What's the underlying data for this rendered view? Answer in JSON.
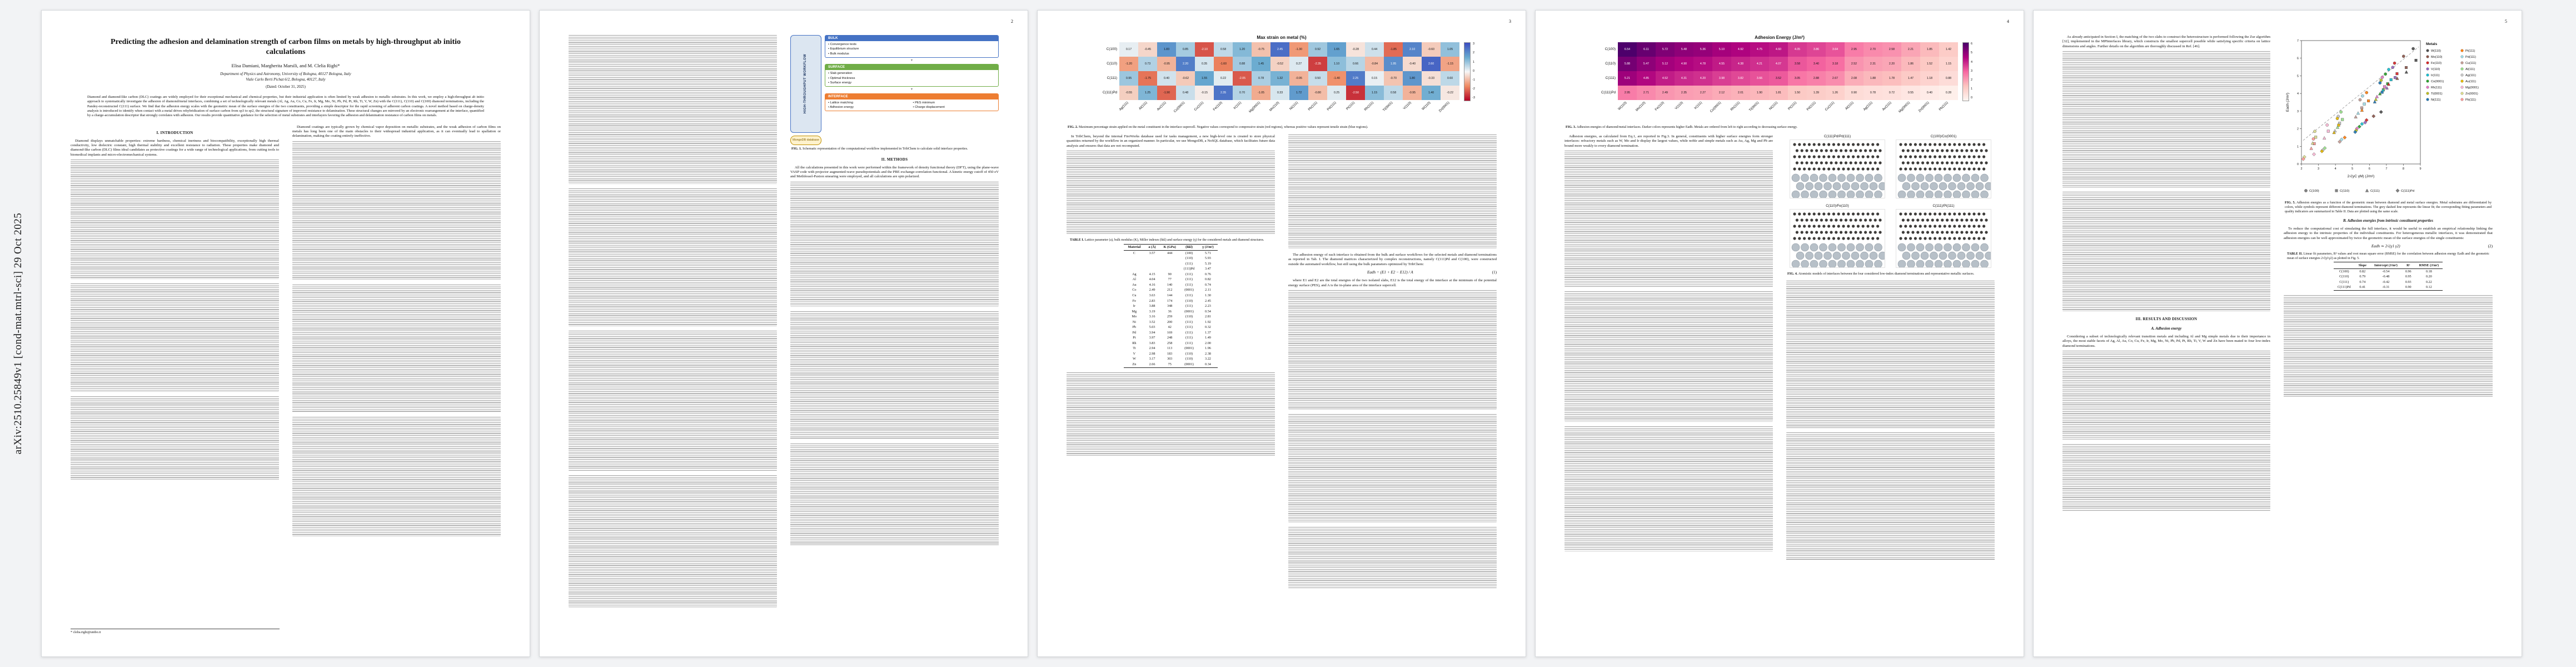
{
  "arxiv_label": "arXiv:2510.25849v1  [cond-mat.mtrl-sci]  29 Oct 2025",
  "page_numbers": {
    "p2": "2",
    "p3": "3",
    "p4": "4",
    "p5": "5"
  },
  "paper": {
    "title": "Predicting the adhesion and delamination strength of carbon films on metals by high-throughput ab initio calculations",
    "authors": "Elisa Damiani, Margherita Marsili, and M. Clelia Righi*",
    "affiliation1": "Department of Physics and Astronomy, University of Bologna, 40127 Bologna, Italy",
    "affiliation2": "Viale Carlo Berti Pichat 6/2, Bologna, 40127, Italy",
    "dated": "(Dated: October 31, 2025)",
    "abstract": "Diamond and diamond-like carbon (DLC) coatings are widely employed for their exceptional mechanical and chemical properties, but their industrial application is often limited by weak adhesion to metallic substrates. In this work, we employ a high-throughput ab initio approach to systematically investigate the adhesion of diamond/metal interfaces, combining a set of technologically relevant metals (Al, Ag, Au, Co, Cu, Fe, Ir, Mg, Mo, Ni, Pb, Pd, Pt, Rh, Ti, V, W, Zn) with the C(111), C(110) and C(100) diamond terminations, including the Pandey-reconstructed C(111) surface. We find that the adhesion energy scales with the geometric mean of the surface energies of the two constituents, providing a simple descriptor for the rapid screening of adherent carbon coatings. A novel method based on charge-density analysis is introduced to identify when contact with a metal drives rehybridization of surface carbon from sp3 to sp2, the structural signature of improved resistance to delamination. These structural changes are mirrored by an electronic rearrangement at the interface, quantified by a charge-accumulation descriptor that strongly correlates with adhesion. Our results provide quantitative guidance for the selection of metal substrates and interlayers favoring the adhesion and delamination resistance of carbon films on metals.",
    "footnote": "* clelia.righi@unibo.it"
  },
  "headings": {
    "intro": "I. INTRODUCTION",
    "methods": "II. METHODS",
    "results": "III. RESULTS AND DISCUSSION",
    "sub_a": "A. Adhesion energy",
    "sub_b": "B. Adhesion energies from intrinsic constituent properties"
  },
  "paragraphs": {
    "intro_1": "Diamond displays unmatchable properties: extreme hardness, chemical inertness and biocompatibility, exceptionally high thermal conductivity, low dielectric constant, high thermal stability and excellent resistance to radiation. These properties make diamond and diamond-like carbon (DLC) films ideal candidates as protective coatings for a wide range of technological applications, from cutting tools to biomedical implants and micro-electromechanical systems.",
    "p1_right": "Diamond coatings are typically grown by chemical vapor deposition on metallic substrates, and the weak adhesion of carbon films on metals has long been one of the main obstacles to their widespread industrial application, as it can eventually lead to spallation or delamination, making the coating entirely ineffective.",
    "methods_1": "All the calculations presented in this work were performed within the framework of density functional theory (DFT), using the plane-wave VASP code with projector augmented-wave pseudopotentials and the PBE exchange-correlation functional. A kinetic energy cutoff of 450 eV and Methfessel-Paxton smearing were employed, and all calculations are spin polarized.",
    "p3_left_trib": "In TribChem, beyond the internal FireWorks database used for tasks management, a new high-level one is created to store physical quantities returned by the workflow in an organized manner. In particular, we use MongoDB, a NoSQL database, which facilitates future data analysis and ensures that data are not recomputed.",
    "p3_right_pre": "The adhesion energy of each interface is obtained from the bulk and surface workflows for the selected metals and diamond terminations as reported in Tab. I. The diamond matrices characterized by complex reconstructions, namely C(111)Pd and C(100), were constructed outside the automated workflow, but still using the bulk parameters optimized by TribChem:",
    "p3_right_post": "where E1 and E2 are the total energies of the two isolated slabs, E12 is the total energy of the interface at the minimum of the potential energy surface (PES), and A is the in-plane area of the interface supercell.",
    "p4_left_1": "Adhesion energies, as calculated from Eq.1, are reported in Fig.3. In general, constituents with higher surface energies form stronger interfaces: refractory metals such as W, Mo and Ir display the largest values, while noble and simple metals such as Au, Ag, Mg and Pb are bound more weakly to every diamond termination.",
    "p5_left_1": "As already anticipated in Section I, the matching of the two slabs to construct the heterostructure is performed following the Zur algorithm [32], implemented in the MPInterfaces library, which constructs the smallest supercell possible while satisfying specific criteria on lattice dimensions and angles. Further details on the algorithm are thoroughly discussed in Ref. [46].",
    "p5_a_1": "Considering a subset of technologically relevant transition metals and including Al and Mg simple metals due to their importance in alloys, the most stable facets of Ag, Al, Au, Co, Cu, Fe, Ir, Mg, Mo, Ni, Pb, Pd, Pt, Rh, Ti, V, W and Zn have been mated to four low-index diamond terminations.",
    "p5_b_1": "To reduce the computational cost of simulating the full interface, it would be useful to establish an empirical relationship linking the adhesion energy to the intrinsic properties of the individual constituents. For heterogeneous metallic interfaces, it was demonstrated that adhesion energies can be well approximated by twice the geometric mean of the surface energies of the single constituents:"
  },
  "equations": {
    "eq1": "Eadh = (E1 + E2 − E12) / A",
    "eq1_num": "(1)",
    "eq2": "Eadh ≃ 2√(γ1 γ2)",
    "eq2_num": "(2)"
  },
  "figures": {
    "fig1": {
      "label": "FIG. 1.",
      "caption": "Schematic representation of the computational workflow implemented in TribChem to calculate solid interface properties."
    },
    "fig2": {
      "label": "FIG. 2.",
      "caption": "Maximum percentage strain applied on the metal constituent in the interface supercell. Negative values correspond to compressive strain (red regions), whereas positive values represent tensile strain (blue regions)."
    },
    "fig3": {
      "label": "FIG. 3.",
      "caption": "Adhesion energies of diamond/metal interfaces. Darker colors represents higher Eadh. Metals are ordered from left to right according to decreasing surface energy."
    },
    "fig4": {
      "label": "FIG. 4.",
      "caption": "Atomistic models of interfaces between the four considered low-index diamond terminations and representative metallic surfaces.",
      "panels": [
        "C(111)Pd/Pd(111)",
        "C(100)/Co(0001)",
        "C(110)/Fe(110)",
        "C(111)/Pt(111)"
      ]
    },
    "fig5": {
      "label": "FIG. 5.",
      "caption": "Adhesion energies as a function of the geometric mean between diamond and metal surface energies. Metal substrates are differentiated by colors, while symbols represent different diamond terminations. The grey dashed line represents the linear fit; the corresponding fitting parameters and quality indicators are summarized in Table II. Data are plotted using the same scale."
    }
  },
  "fig1_diagram": {
    "side_label": "HIGH-THROUGHPUT WORKFLOW",
    "db_label": "MongoDB database",
    "boxes": [
      {
        "label": "BULK",
        "color": "#4472c4",
        "items": [
          "Convergence tests",
          "Equilibrium structure",
          "Bulk modulus"
        ]
      },
      {
        "label": "SURFACE",
        "color": "#70ad47",
        "items": [
          "Slab generation",
          "Optimal thickness",
          "Surface energy"
        ]
      },
      {
        "label": "INTERFACE",
        "color": "#ed7d31",
        "items": [
          "Lattice matching",
          "PES minimum",
          "Adhesion energy",
          "Charge displacement"
        ]
      }
    ]
  },
  "table1": {
    "label": "TABLE I.",
    "caption": "Lattice parameter (a), bulk modulus (K), Miller indexes (hkl) and surface energy (γ) for the considered metals and diamond structures.",
    "headers": [
      "Material",
      "a (Å)",
      "K (GPa)",
      "(hkl)",
      "γ (J/m²)"
    ],
    "rows": [
      [
        "C",
        "3.57",
        "444",
        "(100)",
        "5.71"
      ],
      [
        "",
        "",
        "",
        "(110)",
        "5.93"
      ],
      [
        "",
        "",
        "",
        "(111)",
        "5.19"
      ],
      [
        "",
        "",
        "",
        "(111)Pd",
        "3.47"
      ],
      [
        "Ag",
        "4.15",
        "90",
        "(111)",
        "0.76"
      ],
      [
        "Al",
        "4.04",
        "77",
        "(111)",
        "0.82"
      ],
      [
        "Au",
        "4.16",
        "140",
        "(111)",
        "0.74"
      ],
      [
        "Co",
        "2.49",
        "212",
        "(0001)",
        "2.11"
      ],
      [
        "Cu",
        "3.63",
        "144",
        "(111)",
        "1.30"
      ],
      [
        "Fe",
        "2.83",
        "174",
        "(110)",
        "2.45"
      ],
      [
        "Ir",
        "3.88",
        "348",
        "(111)",
        "2.23"
      ],
      [
        "Mg",
        "3.19",
        "36",
        "(0001)",
        "0.54"
      ],
      [
        "Mo",
        "3.16",
        "259",
        "(110)",
        "2.81"
      ],
      [
        "Ni",
        "3.52",
        "200",
        "(111)",
        "1.92"
      ],
      [
        "Pb",
        "5.03",
        "42",
        "(111)",
        "0.32"
      ],
      [
        "Pd",
        "3.94",
        "169",
        "(111)",
        "1.37"
      ],
      [
        "Pt",
        "3.97",
        "248",
        "(111)",
        "1.49"
      ],
      [
        "Rh",
        "3.83",
        "258",
        "(111)",
        "2.00"
      ],
      [
        "Ti",
        "2.94",
        "113",
        "(0001)",
        "1.96"
      ],
      [
        "V",
        "2.98",
        "183",
        "(110)",
        "2.38"
      ],
      [
        "W",
        "3.17",
        "303",
        "(110)",
        "3.22"
      ],
      [
        "Zn",
        "2.66",
        "75",
        "(0001)",
        "0.34"
      ]
    ]
  },
  "table2": {
    "label": "TABLE II.",
    "caption": "Linear fit parameters, R² values and root mean square error (RMSE) for the correlation between adhesion energy Eadh and the geometric mean of surface energies 2√(γ1γ2) as plotted in Fig. 5.",
    "headers": [
      "",
      "Slope",
      "Intercept (J/m²)",
      "R²",
      "RMSE (J/m²)"
    ],
    "rows": [
      [
        "C(100)",
        "0.82",
        "-0.54",
        "0.96",
        "0.18"
      ],
      [
        "C(110)",
        "0.79",
        "-0.48",
        "0.95",
        "0.20"
      ],
      [
        "C(111)",
        "0.74",
        "-0.42",
        "0.93",
        "0.22"
      ],
      [
        "C(111)Pd",
        "0.41",
        "-0.31",
        "0.90",
        "0.12"
      ]
    ]
  },
  "chart_data": {
    "fig2": {
      "type": "heatmap",
      "title": "Max strain on metal (%)",
      "palette": "diverging",
      "vmin": -3,
      "vmax": 3,
      "colorbar_ticks": [
        "3",
        "2",
        "1",
        "0",
        "-1",
        "-2",
        "-3"
      ],
      "rows": [
        "C(100)",
        "C(110)",
        "C(111)",
        "C(111)Pd"
      ],
      "cols": [
        "Ag(111)",
        "Al(111)",
        "Au(111)",
        "Co(0001)",
        "Cu(111)",
        "Fe(110)",
        "Ir(111)",
        "Mg(0001)",
        "Mo(110)",
        "Ni(111)",
        "Pb(111)",
        "Pd(111)",
        "Pt(111)",
        "Rh(111)",
        "Ti(0001)",
        "V(110)",
        "W(110)",
        "Zn(0001)"
      ],
      "values": [
        [
          0.17,
          -0.45,
          1.83,
          0.85,
          -2.1,
          0.58,
          1.2,
          -0.75,
          2.45,
          -1.3,
          0.92,
          1.65,
          -0.28,
          0.44,
          -1.85,
          2.1,
          -0.6,
          1.05
        ],
        [
          -1.2,
          0.73,
          -0.95,
          2.2,
          0.35,
          -1.6,
          0.88,
          1.45,
          -0.52,
          0.27,
          -2.35,
          1.1,
          0.66,
          -0.84,
          1.95,
          -0.4,
          2.6,
          -1.15
        ],
        [
          0.95,
          -1.75,
          0.4,
          -0.62,
          1.55,
          0.22,
          -2.05,
          0.78,
          1.32,
          -0.95,
          0.5,
          -1.4,
          2.25,
          0.15,
          -0.7,
          1.8,
          -0.33,
          0.6
        ],
        [
          -0.55,
          1.25,
          -1.9,
          0.48,
          -0.15,
          2.35,
          0.7,
          -1.05,
          0.33,
          1.72,
          -0.8,
          0.25,
          -2.5,
          1.15,
          0.58,
          -0.95,
          1.4,
          -0.22
        ]
      ]
    },
    "fig3": {
      "type": "heatmap",
      "title": "Adhesion Energy (J/m²)",
      "palette": "sequential",
      "vmin": 0,
      "vmax": 6.6,
      "colorbar_ticks": [
        "6",
        "5",
        "4",
        "3",
        "2",
        "1",
        "0"
      ],
      "rows": [
        "C(100)",
        "C(110)",
        "C(111)",
        "C(111)Pd"
      ],
      "cols": [
        "W(110)",
        "Mo(110)",
        "Fe(110)",
        "V(110)",
        "Ir(111)",
        "Co(0001)",
        "Rh(111)",
        "Ti(0001)",
        "Ni(111)",
        "Pt(111)",
        "Pd(111)",
        "Cu(111)",
        "Al(111)",
        "Ag(111)",
        "Au(111)",
        "Mg(0001)",
        "Zn(0001)",
        "Pb(111)"
      ],
      "values": [
        [
          6.54,
          6.11,
          5.72,
          5.48,
          5.36,
          5.1,
          4.92,
          4.75,
          4.6,
          4.05,
          3.86,
          3.64,
          2.95,
          2.7,
          2.58,
          2.21,
          1.85,
          1.42
        ],
        [
          5.88,
          5.47,
          5.12,
          4.9,
          4.78,
          4.55,
          4.38,
          4.21,
          4.07,
          3.58,
          3.4,
          3.18,
          2.52,
          2.31,
          2.2,
          1.86,
          1.52,
          1.15
        ],
        [
          5.21,
          4.85,
          4.52,
          4.31,
          4.2,
          3.98,
          3.82,
          3.66,
          3.52,
          3.05,
          2.88,
          2.67,
          2.08,
          1.88,
          1.78,
          1.47,
          1.18,
          0.88
        ],
        [
          2.95,
          2.71,
          2.49,
          2.35,
          2.27,
          2.12,
          2.01,
          1.9,
          1.81,
          1.5,
          1.39,
          1.26,
          0.9,
          0.78,
          0.72,
          0.55,
          0.4,
          0.28
        ]
      ]
    },
    "fig5": {
      "type": "scatter",
      "xlabel": "2√(γC γM) (J/m²)",
      "ylabel": "Eadh (J/m²)",
      "xlim": [
        2,
        9
      ],
      "ylim": [
        0,
        7
      ],
      "legend_title": "Metals",
      "fit": {
        "slope": 0.78,
        "intercept": -0.3
      },
      "metals": [
        {
          "label": "W(110)",
          "gamma": 3.22,
          "color": "#4d4d4d"
        },
        {
          "label": "Mo(110)",
          "gamma": 2.81,
          "color": "#8c564b"
        },
        {
          "label": "Fe(110)",
          "gamma": 2.45,
          "color": "#d62728"
        },
        {
          "label": "V(110)",
          "gamma": 2.38,
          "color": "#9467bd"
        },
        {
          "label": "Ir(111)",
          "gamma": 2.23,
          "color": "#17becf"
        },
        {
          "label": "Co(0001)",
          "gamma": 2.11,
          "color": "#2ca02c"
        },
        {
          "label": "Rh(111)",
          "gamma": 2.0,
          "color": "#e377c2"
        },
        {
          "label": "Ti(0001)",
          "gamma": 1.96,
          "color": "#bcbd22"
        },
        {
          "label": "Ni(111)",
          "gamma": 1.92,
          "color": "#1f77b4"
        },
        {
          "label": "Pt(111)",
          "gamma": 1.49,
          "color": "#ff7f0e"
        },
        {
          "label": "Pd(111)",
          "gamma": 1.37,
          "color": "#9edae5"
        },
        {
          "label": "Cu(111)",
          "gamma": 1.3,
          "color": "#c49c94"
        },
        {
          "label": "Al(111)",
          "gamma": 0.82,
          "color": "#98df8a"
        },
        {
          "label": "Ag(111)",
          "gamma": 0.76,
          "color": "#c7c7c7"
        },
        {
          "label": "Au(111)",
          "gamma": 0.74,
          "color": "#e6b800"
        },
        {
          "label": "Mg(0001)",
          "gamma": 0.54,
          "color": "#f7b6d2"
        },
        {
          "label": "Zn(0001)",
          "gamma": 0.34,
          "color": "#dbdb8d"
        },
        {
          "label": "Pb(111)",
          "gamma": 0.32,
          "color": "#ff9896"
        }
      ],
      "terminations": [
        {
          "name": "C(100)",
          "gamma": 5.71,
          "marker": "circle"
        },
        {
          "name": "C(110)",
          "gamma": 5.93,
          "marker": "square"
        },
        {
          "name": "C(111)",
          "gamma": 5.19,
          "marker": "triangle"
        },
        {
          "name": "C(111)Pd",
          "gamma": 3.47,
          "marker": "diamond"
        }
      ]
    }
  }
}
